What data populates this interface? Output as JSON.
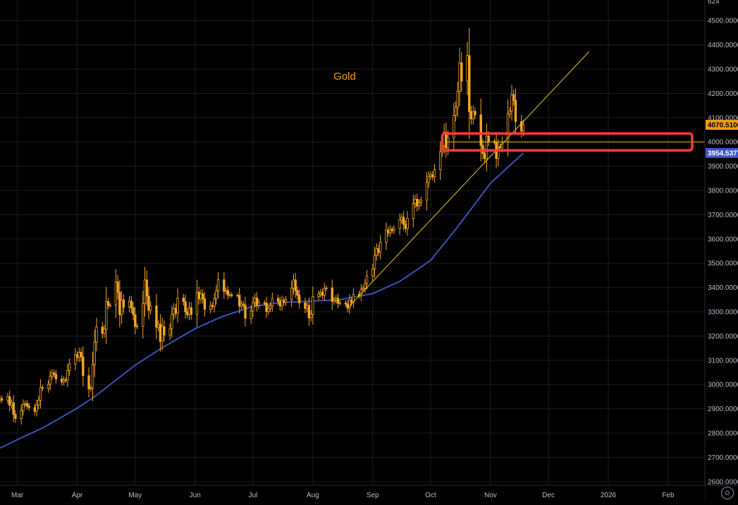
{
  "chart_data": {
    "type": "candlestick",
    "title": "Gold",
    "price_axis": {
      "ticks": [
        "4500.0000",
        "4400.0000",
        "4300.0000",
        "4200.0000",
        "4100.0000",
        "4000.0000",
        "3900.0000",
        "3800.0000",
        "3700.0000",
        "3600.0000",
        "3500.0000",
        "3400.0000",
        "3300.0000",
        "3200.0000",
        "3100.0000",
        "3000.0000",
        "2900.0000",
        "2800.0000",
        "2700.0000",
        "2600.0000"
      ],
      "ylim": [
        2585,
        4585
      ],
      "top_partial_label": "624"
    },
    "time_axis": {
      "labels": [
        "Mar",
        "Apr",
        "May",
        "Jun",
        "Jul",
        "Aug",
        "Sep",
        "Oct",
        "Nov",
        "Dec",
        "2026",
        "Feb"
      ],
      "label_values": [
        "2025-03-01",
        "2025-04-01",
        "2025-05-01",
        "2025-06-01",
        "2025-07-01",
        "2025-08-01",
        "2025-09-01",
        "2025-10-01",
        "2025-11-01",
        "2025-12-01",
        "2026-01-01",
        "2026-02-01"
      ],
      "xlim": [
        "2025-02-20",
        "2026-02-20"
      ]
    },
    "grid": true,
    "price_labels": [
      {
        "text": "4070.5100",
        "value": 4070.51,
        "color": "#f39c12"
      },
      {
        "text": "3954.5377",
        "value": 3954.5377,
        "color": "#3e58c9"
      }
    ],
    "candle_color": "#f5a623",
    "ma_color": "#3e58c9",
    "trend_color": "#e8c31a",
    "box_color": "#ff3b3b",
    "candles": [
      {
        "x": "2025-02-20",
        "o": 2935,
        "c": 2942
      },
      {
        "x": "2025-02-21",
        "o": 2942,
        "c": 2936
      },
      {
        "x": "2025-02-24",
        "o": 2936,
        "c": 2950
      },
      {
        "x": "2025-02-25",
        "o": 2950,
        "c": 2915
      },
      {
        "x": "2025-02-26",
        "o": 2915,
        "c": 2925
      },
      {
        "x": "2025-02-27",
        "o": 2925,
        "c": 2877
      },
      {
        "x": "2025-02-28",
        "o": 2877,
        "c": 2860
      },
      {
        "x": "2025-03-03",
        "o": 2860,
        "c": 2893
      },
      {
        "x": "2025-03-04",
        "o": 2893,
        "c": 2918
      },
      {
        "x": "2025-03-05",
        "o": 2918,
        "c": 2922
      },
      {
        "x": "2025-03-06",
        "o": 2922,
        "c": 2912
      },
      {
        "x": "2025-03-07",
        "o": 2912,
        "c": 2905
      },
      {
        "x": "2025-03-10",
        "o": 2905,
        "c": 2890
      },
      {
        "x": "2025-03-11",
        "o": 2890,
        "c": 2916
      },
      {
        "x": "2025-03-12",
        "o": 2916,
        "c": 2935
      },
      {
        "x": "2025-03-13",
        "o": 2935,
        "c": 2988
      },
      {
        "x": "2025-03-14",
        "o": 2988,
        "c": 2984
      },
      {
        "x": "2025-03-17",
        "o": 2984,
        "c": 3001
      },
      {
        "x": "2025-03-18",
        "o": 3001,
        "c": 3035
      },
      {
        "x": "2025-03-19",
        "o": 3035,
        "c": 3048
      },
      {
        "x": "2025-03-20",
        "o": 3048,
        "c": 3042
      },
      {
        "x": "2025-03-21",
        "o": 3042,
        "c": 3023
      },
      {
        "x": "2025-03-24",
        "o": 3023,
        "c": 3011
      },
      {
        "x": "2025-03-25",
        "o": 3011,
        "c": 3020
      },
      {
        "x": "2025-03-26",
        "o": 3020,
        "c": 3018
      },
      {
        "x": "2025-03-27",
        "o": 3018,
        "c": 3058
      },
      {
        "x": "2025-03-28",
        "o": 3058,
        "c": 3085
      },
      {
        "x": "2025-03-31",
        "o": 3085,
        "c": 3123
      },
      {
        "x": "2025-04-01",
        "o": 3123,
        "c": 3112
      },
      {
        "x": "2025-04-02",
        "o": 3112,
        "c": 3133
      },
      {
        "x": "2025-04-03",
        "o": 3133,
        "c": 3114
      },
      {
        "x": "2025-04-04",
        "o": 3114,
        "c": 3037
      },
      {
        "x": "2025-04-07",
        "o": 3037,
        "c": 2982
      },
      {
        "x": "2025-04-08",
        "o": 2982,
        "c": 2985
      },
      {
        "x": "2025-04-09",
        "o": 2985,
        "c": 3082
      },
      {
        "x": "2025-04-10",
        "o": 3082,
        "c": 3175
      },
      {
        "x": "2025-04-11",
        "o": 3175,
        "c": 3237
      },
      {
        "x": "2025-04-14",
        "o": 3237,
        "c": 3211
      },
      {
        "x": "2025-04-15",
        "o": 3211,
        "c": 3228
      },
      {
        "x": "2025-04-16",
        "o": 3228,
        "c": 3342
      },
      {
        "x": "2025-04-17",
        "o": 3342,
        "c": 3327
      },
      {
        "x": "2025-04-18",
        "o": 3327,
        "c": 3327
      },
      {
        "x": "2025-04-21",
        "o": 3327,
        "c": 3423
      },
      {
        "x": "2025-04-22",
        "o": 3423,
        "c": 3380
      },
      {
        "x": "2025-04-23",
        "o": 3380,
        "c": 3288
      },
      {
        "x": "2025-04-24",
        "o": 3288,
        "c": 3349
      },
      {
        "x": "2025-04-25",
        "o": 3349,
        "c": 3319
      },
      {
        "x": "2025-04-28",
        "o": 3319,
        "c": 3344
      },
      {
        "x": "2025-04-29",
        "o": 3344,
        "c": 3317
      },
      {
        "x": "2025-04-30",
        "o": 3317,
        "c": 3288
      },
      {
        "x": "2025-05-01",
        "o": 3288,
        "c": 3239
      },
      {
        "x": "2025-05-02",
        "o": 3239,
        "c": 3241
      },
      {
        "x": "2025-05-05",
        "o": 3241,
        "c": 3334
      },
      {
        "x": "2025-05-06",
        "o": 3334,
        "c": 3431
      },
      {
        "x": "2025-05-07",
        "o": 3431,
        "c": 3365
      },
      {
        "x": "2025-05-08",
        "o": 3365,
        "c": 3306
      },
      {
        "x": "2025-05-09",
        "o": 3306,
        "c": 3324
      },
      {
        "x": "2025-05-12",
        "o": 3324,
        "c": 3236
      },
      {
        "x": "2025-05-13",
        "o": 3236,
        "c": 3249
      },
      {
        "x": "2025-05-14",
        "o": 3249,
        "c": 3178
      },
      {
        "x": "2025-05-15",
        "o": 3178,
        "c": 3239
      },
      {
        "x": "2025-05-16",
        "o": 3239,
        "c": 3204
      },
      {
        "x": "2025-05-19",
        "o": 3204,
        "c": 3230
      },
      {
        "x": "2025-05-20",
        "o": 3230,
        "c": 3289
      },
      {
        "x": "2025-05-21",
        "o": 3289,
        "c": 3314
      },
      {
        "x": "2025-05-22",
        "o": 3314,
        "c": 3294
      },
      {
        "x": "2025-05-23",
        "o": 3294,
        "c": 3357
      },
      {
        "x": "2025-05-26",
        "o": 3357,
        "c": 3342
      },
      {
        "x": "2025-05-27",
        "o": 3342,
        "c": 3300
      },
      {
        "x": "2025-05-28",
        "o": 3300,
        "c": 3288
      },
      {
        "x": "2025-05-29",
        "o": 3288,
        "c": 3317
      },
      {
        "x": "2025-05-30",
        "o": 3317,
        "c": 3289
      },
      {
        "x": "2025-06-02",
        "o": 3289,
        "c": 3381
      },
      {
        "x": "2025-06-03",
        "o": 3381,
        "c": 3353
      },
      {
        "x": "2025-06-04",
        "o": 3353,
        "c": 3374
      },
      {
        "x": "2025-06-05",
        "o": 3374,
        "c": 3353
      },
      {
        "x": "2025-06-06",
        "o": 3353,
        "c": 3310
      },
      {
        "x": "2025-06-09",
        "o": 3310,
        "c": 3326
      },
      {
        "x": "2025-06-10",
        "o": 3326,
        "c": 3322
      },
      {
        "x": "2025-06-11",
        "o": 3322,
        "c": 3354
      },
      {
        "x": "2025-06-12",
        "o": 3354,
        "c": 3386
      },
      {
        "x": "2025-06-13",
        "o": 3386,
        "c": 3432
      },
      {
        "x": "2025-06-16",
        "o": 3432,
        "c": 3384
      },
      {
        "x": "2025-06-17",
        "o": 3384,
        "c": 3388
      },
      {
        "x": "2025-06-18",
        "o": 3388,
        "c": 3369
      },
      {
        "x": "2025-06-19",
        "o": 3369,
        "c": 3370
      },
      {
        "x": "2025-06-20",
        "o": 3370,
        "c": 3368
      },
      {
        "x": "2025-06-23",
        "o": 3368,
        "c": 3368
      },
      {
        "x": "2025-06-24",
        "o": 3368,
        "c": 3323
      },
      {
        "x": "2025-06-25",
        "o": 3323,
        "c": 3332
      },
      {
        "x": "2025-06-26",
        "o": 3332,
        "c": 3327
      },
      {
        "x": "2025-06-27",
        "o": 3327,
        "c": 3273
      },
      {
        "x": "2025-06-30",
        "o": 3273,
        "c": 3303
      },
      {
        "x": "2025-07-01",
        "o": 3303,
        "c": 3338
      },
      {
        "x": "2025-07-02",
        "o": 3338,
        "c": 3357
      },
      {
        "x": "2025-07-03",
        "o": 3357,
        "c": 3326
      },
      {
        "x": "2025-07-04",
        "o": 3326,
        "c": 3337
      },
      {
        "x": "2025-07-07",
        "o": 3337,
        "c": 3336
      },
      {
        "x": "2025-07-08",
        "o": 3336,
        "c": 3301
      },
      {
        "x": "2025-07-09",
        "o": 3301,
        "c": 3313
      },
      {
        "x": "2025-07-10",
        "o": 3313,
        "c": 3324
      },
      {
        "x": "2025-07-11",
        "o": 3324,
        "c": 3355
      },
      {
        "x": "2025-07-14",
        "o": 3355,
        "c": 3343
      },
      {
        "x": "2025-07-15",
        "o": 3343,
        "c": 3324
      },
      {
        "x": "2025-07-16",
        "o": 3324,
        "c": 3347
      },
      {
        "x": "2025-07-17",
        "o": 3347,
        "c": 3339
      },
      {
        "x": "2025-07-18",
        "o": 3339,
        "c": 3350
      },
      {
        "x": "2025-07-21",
        "o": 3350,
        "c": 3397
      },
      {
        "x": "2025-07-22",
        "o": 3397,
        "c": 3431
      },
      {
        "x": "2025-07-23",
        "o": 3431,
        "c": 3387
      },
      {
        "x": "2025-07-24",
        "o": 3387,
        "c": 3368
      },
      {
        "x": "2025-07-25",
        "o": 3368,
        "c": 3337
      },
      {
        "x": "2025-07-28",
        "o": 3337,
        "c": 3314
      },
      {
        "x": "2025-07-29",
        "o": 3314,
        "c": 3326
      },
      {
        "x": "2025-07-30",
        "o": 3326,
        "c": 3275
      },
      {
        "x": "2025-07-31",
        "o": 3275,
        "c": 3290
      },
      {
        "x": "2025-08-01",
        "o": 3290,
        "c": 3362
      },
      {
        "x": "2025-08-04",
        "o": 3362,
        "c": 3373
      },
      {
        "x": "2025-08-05",
        "o": 3373,
        "c": 3380
      },
      {
        "x": "2025-08-06",
        "o": 3380,
        "c": 3368
      },
      {
        "x": "2025-08-07",
        "o": 3368,
        "c": 3396
      },
      {
        "x": "2025-08-08",
        "o": 3396,
        "c": 3398
      },
      {
        "x": "2025-08-11",
        "o": 3398,
        "c": 3342
      },
      {
        "x": "2025-08-12",
        "o": 3342,
        "c": 3348
      },
      {
        "x": "2025-08-13",
        "o": 3348,
        "c": 3356
      },
      {
        "x": "2025-08-14",
        "o": 3356,
        "c": 3335
      },
      {
        "x": "2025-08-15",
        "o": 3335,
        "c": 3336
      },
      {
        "x": "2025-08-18",
        "o": 3336,
        "c": 3332
      },
      {
        "x": "2025-08-19",
        "o": 3332,
        "c": 3315
      },
      {
        "x": "2025-08-20",
        "o": 3315,
        "c": 3348
      },
      {
        "x": "2025-08-21",
        "o": 3348,
        "c": 3339
      },
      {
        "x": "2025-08-22",
        "o": 3339,
        "c": 3372
      },
      {
        "x": "2025-08-25",
        "o": 3372,
        "c": 3366
      },
      {
        "x": "2025-08-26",
        "o": 3366,
        "c": 3393
      },
      {
        "x": "2025-08-27",
        "o": 3393,
        "c": 3397
      },
      {
        "x": "2025-08-28",
        "o": 3397,
        "c": 3416
      },
      {
        "x": "2025-08-29",
        "o": 3416,
        "c": 3448
      },
      {
        "x": "2025-09-01",
        "o": 3448,
        "c": 3476
      },
      {
        "x": "2025-09-02",
        "o": 3476,
        "c": 3533
      },
      {
        "x": "2025-09-03",
        "o": 3533,
        "c": 3560
      },
      {
        "x": "2025-09-04",
        "o": 3560,
        "c": 3545
      },
      {
        "x": "2025-09-05",
        "o": 3545,
        "c": 3587
      },
      {
        "x": "2025-09-08",
        "o": 3587,
        "c": 3636
      },
      {
        "x": "2025-09-09",
        "o": 3636,
        "c": 3625
      },
      {
        "x": "2025-09-10",
        "o": 3625,
        "c": 3640
      },
      {
        "x": "2025-09-11",
        "o": 3640,
        "c": 3634
      },
      {
        "x": "2025-09-12",
        "o": 3634,
        "c": 3643
      },
      {
        "x": "2025-09-15",
        "o": 3643,
        "c": 3679
      },
      {
        "x": "2025-09-16",
        "o": 3679,
        "c": 3690
      },
      {
        "x": "2025-09-17",
        "o": 3690,
        "c": 3660
      },
      {
        "x": "2025-09-18",
        "o": 3660,
        "c": 3643
      },
      {
        "x": "2025-09-19",
        "o": 3643,
        "c": 3685
      },
      {
        "x": "2025-09-22",
        "o": 3685,
        "c": 3746
      },
      {
        "x": "2025-09-23",
        "o": 3746,
        "c": 3764
      },
      {
        "x": "2025-09-24",
        "o": 3764,
        "c": 3736
      },
      {
        "x": "2025-09-25",
        "o": 3736,
        "c": 3749
      },
      {
        "x": "2025-09-26",
        "o": 3749,
        "c": 3760
      },
      {
        "x": "2025-09-29",
        "o": 3760,
        "c": 3833
      },
      {
        "x": "2025-09-30",
        "o": 3833,
        "c": 3858
      },
      {
        "x": "2025-10-01",
        "o": 3858,
        "c": 3865
      },
      {
        "x": "2025-10-02",
        "o": 3865,
        "c": 3856
      },
      {
        "x": "2025-10-03",
        "o": 3856,
        "c": 3886
      },
      {
        "x": "2025-10-06",
        "o": 3886,
        "c": 3960
      },
      {
        "x": "2025-10-07",
        "o": 3960,
        "c": 3985
      },
      {
        "x": "2025-10-08",
        "o": 3985,
        "c": 4040
      },
      {
        "x": "2025-10-09",
        "o": 4040,
        "c": 3975
      },
      {
        "x": "2025-10-10",
        "o": 3975,
        "c": 4018
      },
      {
        "x": "2025-10-13",
        "o": 4018,
        "c": 4110
      },
      {
        "x": "2025-10-14",
        "o": 4110,
        "c": 4143
      },
      {
        "x": "2025-10-15",
        "o": 4143,
        "c": 4209
      },
      {
        "x": "2025-10-16",
        "o": 4209,
        "c": 4326
      },
      {
        "x": "2025-10-17",
        "o": 4326,
        "c": 4251
      },
      {
        "x": "2025-10-20",
        "o": 4251,
        "c": 4356
      },
      {
        "x": "2025-10-21",
        "o": 4356,
        "c": 4125
      },
      {
        "x": "2025-10-22",
        "o": 4125,
        "c": 4095
      },
      {
        "x": "2025-10-23",
        "o": 4095,
        "c": 4126
      },
      {
        "x": "2025-10-24",
        "o": 4126,
        "c": 4112
      },
      {
        "x": "2025-10-27",
        "o": 4112,
        "c": 3986
      },
      {
        "x": "2025-10-28",
        "o": 3986,
        "c": 3953
      },
      {
        "x": "2025-10-29",
        "o": 3953,
        "c": 3931
      },
      {
        "x": "2025-10-30",
        "o": 3931,
        "c": 4024
      },
      {
        "x": "2025-10-31",
        "o": 4024,
        "c": 4003
      },
      {
        "x": "2025-11-03",
        "o": 4003,
        "c": 4000
      },
      {
        "x": "2025-11-04",
        "o": 4000,
        "c": 3932
      },
      {
        "x": "2025-11-05",
        "o": 3932,
        "c": 3980
      },
      {
        "x": "2025-11-06",
        "o": 3980,
        "c": 3977
      },
      {
        "x": "2025-11-07",
        "o": 3977,
        "c": 4001
      },
      {
        "x": "2025-11-10",
        "o": 4001,
        "c": 4115
      },
      {
        "x": "2025-11-11",
        "o": 4115,
        "c": 4128
      },
      {
        "x": "2025-11-12",
        "o": 4128,
        "c": 4195
      },
      {
        "x": "2025-11-13",
        "o": 4195,
        "c": 4171
      },
      {
        "x": "2025-11-14",
        "o": 4171,
        "c": 4084
      },
      {
        "x": "2025-11-17",
        "o": 4084,
        "c": 4045
      },
      {
        "x": "2025-11-18",
        "o": 4045,
        "c": 4070.51
      }
    ],
    "moving_average": [
      {
        "x": "2025-02-20",
        "y": 2738
      },
      {
        "x": "2025-03-01",
        "y": 2773
      },
      {
        "x": "2025-03-15",
        "y": 2825
      },
      {
        "x": "2025-04-01",
        "y": 2903
      },
      {
        "x": "2025-04-10",
        "y": 2950
      },
      {
        "x": "2025-04-20",
        "y": 3012
      },
      {
        "x": "2025-05-01",
        "y": 3080
      },
      {
        "x": "2025-05-15",
        "y": 3152
      },
      {
        "x": "2025-06-01",
        "y": 3230
      },
      {
        "x": "2025-06-15",
        "y": 3280
      },
      {
        "x": "2025-07-01",
        "y": 3322
      },
      {
        "x": "2025-07-15",
        "y": 3338
      },
      {
        "x": "2025-08-01",
        "y": 3344
      },
      {
        "x": "2025-08-15",
        "y": 3350
      },
      {
        "x": "2025-09-01",
        "y": 3375
      },
      {
        "x": "2025-09-15",
        "y": 3425
      },
      {
        "x": "2025-10-01",
        "y": 3512
      },
      {
        "x": "2025-10-15",
        "y": 3650
      },
      {
        "x": "2025-11-01",
        "y": 3830
      },
      {
        "x": "2025-11-18",
        "y": 3954.5377
      }
    ],
    "trend_line": [
      {
        "x": "2025-08-19",
        "y": 3315
      },
      {
        "x": "2025-12-22",
        "y": 4372
      }
    ],
    "horizontal_line": {
      "y": 4000,
      "from": "2025-10-09",
      "to": "2026-02-20"
    },
    "highlight_box": {
      "x_from": "2025-10-07",
      "x_to": "2026-02-20",
      "y_from": 3965,
      "y_to": 4035
    }
  }
}
